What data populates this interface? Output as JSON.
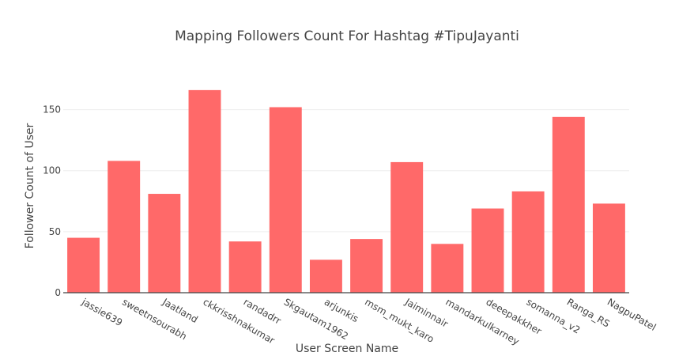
{
  "chart_data": {
    "type": "bar",
    "title": "Mapping Followers Count For Hashtag #TipuJayanti",
    "xlabel": "User Screen Name",
    "ylabel": "Follower Count of User",
    "categories": [
      "jassie639",
      "sweetnsourabh",
      "Jaatland",
      "ckkrisshnakumar",
      "randadrr",
      "Skgautam1962",
      "arjunkis",
      "msm_mukt_karo",
      "Jaiminnair",
      "mandarkulkarney",
      "deeepakkher",
      "somanna_v2",
      "Ranga_RS",
      "NagpuPatel"
    ],
    "values": [
      45,
      108,
      81,
      166,
      42,
      152,
      27,
      44,
      107,
      40,
      69,
      83,
      144,
      73
    ],
    "ylim": [
      0,
      175
    ],
    "yticks": [
      0,
      50,
      100,
      150
    ],
    "bar_color": "#ff6666",
    "grid": true
  }
}
